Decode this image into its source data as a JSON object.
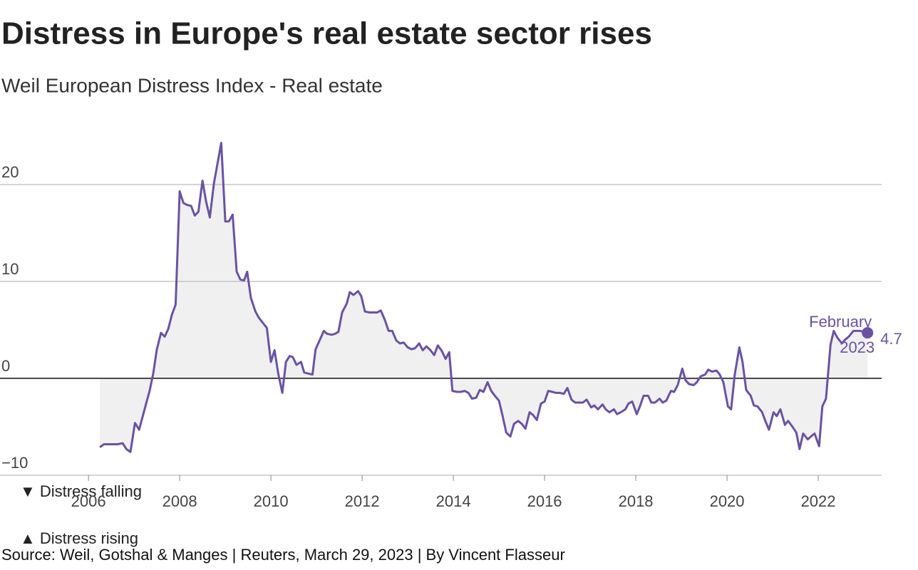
{
  "chart_data": {
    "type": "line",
    "title": "Distress in Europe's real estate sector rises",
    "subtitle": "Weil European Distress Index - Real estate",
    "source": "Source: Weil, Gotshal & Manges | Reuters, March 29, 2023 | By Vincent Flasseur",
    "legend_notes": [
      "▼ Distress falling",
      "▲ Distress rising"
    ],
    "annotation": {
      "label_lines": [
        "February",
        "2023"
      ]
    },
    "color": "#6a52a3",
    "area_color": "#f0f0f0",
    "grid": true,
    "xlim": [
      2004.06,
      2023.39
    ],
    "xticks": [
      2006,
      2008,
      2010,
      2012,
      2014,
      2016,
      2018,
      2020,
      2022
    ],
    "ylim": [
      -10,
      25
    ],
    "yticks": [
      {
        "value": -10,
        "label": "−10"
      },
      0,
      10,
      20
    ],
    "series": [
      {
        "name": "Real estate",
        "x": [
          2006.25,
          2006.34,
          2006.64,
          2006.75,
          2006.83,
          2006.92,
          2007.02,
          2007.11,
          2007.27,
          2007.34,
          2007.42,
          2007.5,
          2007.59,
          2007.67,
          2007.75,
          2007.83,
          2007.91,
          2008.0,
          2008.08,
          2008.16,
          2008.25,
          2008.33,
          2008.41,
          2008.5,
          2008.58,
          2008.66,
          2008.75,
          2008.91,
          2009.0,
          2009.08,
          2009.16,
          2009.25,
          2009.33,
          2009.41,
          2009.48,
          2009.56,
          2009.66,
          2009.73,
          2009.81,
          2009.91,
          2010.0,
          2010.08,
          2010.16,
          2010.25,
          2010.33,
          2010.41,
          2010.48,
          2010.56,
          2010.66,
          2010.73,
          2010.81,
          2010.91,
          2010.98,
          2011.16,
          2011.23,
          2011.33,
          2011.41,
          2011.48,
          2011.56,
          2011.66,
          2011.73,
          2011.81,
          2011.91,
          2011.98,
          2012.06,
          2012.16,
          2012.23,
          2012.33,
          2012.41,
          2012.5,
          2012.58,
          2012.66,
          2012.75,
          2012.83,
          2012.91,
          2013.0,
          2013.08,
          2013.16,
          2013.25,
          2013.33,
          2013.41,
          2013.5,
          2013.58,
          2013.66,
          2013.75,
          2013.83,
          2013.91,
          2013.98,
          2014.08,
          2014.16,
          2014.25,
          2014.33,
          2014.41,
          2014.5,
          2014.58,
          2014.66,
          2014.75,
          2014.83,
          2014.91,
          2015.0,
          2015.08,
          2015.16,
          2015.25,
          2015.33,
          2015.42,
          2015.5,
          2015.58,
          2015.67,
          2015.75,
          2015.83,
          2015.92,
          2016.0,
          2016.08,
          2016.17,
          2016.25,
          2016.34,
          2016.42,
          2016.5,
          2016.59,
          2016.67,
          2016.75,
          2016.84,
          2016.92,
          2017.02,
          2017.09,
          2017.17,
          2017.27,
          2017.34,
          2017.42,
          2017.52,
          2017.59,
          2017.67,
          2017.77,
          2017.84,
          2017.92,
          2018.02,
          2018.09,
          2018.17,
          2018.27,
          2018.34,
          2018.42,
          2018.52,
          2018.59,
          2018.67,
          2018.77,
          2018.84,
          2018.92,
          2019.02,
          2019.09,
          2019.17,
          2019.27,
          2019.34,
          2019.42,
          2019.52,
          2019.59,
          2019.67,
          2019.77,
          2019.84,
          2019.92,
          2020.02,
          2020.09,
          2020.17,
          2020.27,
          2020.34,
          2020.42,
          2020.52,
          2020.59,
          2020.67,
          2020.77,
          2020.84,
          2020.92,
          2021.02,
          2021.09,
          2021.17,
          2021.27,
          2021.34,
          2021.42,
          2021.52,
          2021.59,
          2021.67,
          2021.77,
          2021.84,
          2021.92,
          2022.02,
          2022.09,
          2022.17,
          2022.27,
          2022.34,
          2022.42,
          2022.52,
          2022.59,
          2022.67,
          2022.77,
          2022.84,
          2022.92,
          2023.0,
          2023.08
        ],
        "values": [
          -7.1,
          -6.8,
          -6.8,
          -6.7,
          -7.3,
          -7.6,
          -4.6,
          -5.3,
          -2.5,
          -1.3,
          0.5,
          3.0,
          4.7,
          4.3,
          5.1,
          6.6,
          7.6,
          19.3,
          18.1,
          17.9,
          17.8,
          16.8,
          17.2,
          20.4,
          18.2,
          16.6,
          20.1,
          24.3,
          16.2,
          16.2,
          16.9,
          11.0,
          10.2,
          10.1,
          11.0,
          8.3,
          6.9,
          6.3,
          5.8,
          5.2,
          1.7,
          2.9,
          0.5,
          -1.5,
          1.7,
          2.3,
          2.2,
          1.4,
          1.7,
          0.6,
          0.5,
          0.4,
          3.0,
          4.9,
          4.6,
          4.5,
          4.6,
          4.8,
          6.8,
          7.7,
          8.9,
          8.6,
          9.0,
          8.5,
          6.9,
          6.8,
          6.8,
          6.8,
          7.0,
          6.0,
          4.9,
          4.9,
          3.9,
          3.6,
          3.7,
          3.2,
          3.0,
          3.1,
          3.6,
          2.9,
          3.3,
          2.9,
          2.4,
          3.4,
          2.8,
          2.0,
          2.7,
          -1.3,
          -1.4,
          -1.4,
          -1.3,
          -1.5,
          -2.1,
          -2.0,
          -1.2,
          -1.4,
          -0.4,
          -1.3,
          -1.8,
          -2.3,
          -3.9,
          -5.6,
          -6.0,
          -4.7,
          -4.4,
          -4.7,
          -5.2,
          -3.5,
          -3.8,
          -4.3,
          -2.6,
          -2.4,
          -1.3,
          -1.4,
          -1.5,
          -1.5,
          -1.6,
          -1.0,
          -2.2,
          -2.5,
          -2.5,
          -2.5,
          -2.2,
          -3.0,
          -2.8,
          -3.2,
          -2.7,
          -3.2,
          -3.5,
          -3.2,
          -3.7,
          -3.5,
          -3.2,
          -2.6,
          -2.4,
          -3.7,
          -2.9,
          -1.8,
          -1.8,
          -2.5,
          -2.5,
          -2.1,
          -2.5,
          -2.3,
          -1.3,
          -1.4,
          -0.7,
          1.0,
          -0.2,
          -0.6,
          -0.7,
          -0.4,
          0.2,
          0.4,
          0.9,
          0.7,
          0.8,
          0.4,
          -0.4,
          -2.9,
          -3.2,
          0.4,
          3.2,
          1.7,
          -1.2,
          -1.8,
          -2.8,
          -2.9,
          -3.5,
          -4.4,
          -5.3,
          -3.5,
          -3.9,
          -3.2,
          -4.8,
          -4.4,
          -4.9,
          -5.6,
          -7.3,
          -5.7,
          -6.3,
          -6.0,
          -5.7,
          -7.0,
          -2.9,
          -2.1,
          3.5,
          4.9,
          4.2,
          3.6,
          4.0,
          4.3,
          4.9,
          4.9,
          4.9,
          4.8,
          4.7
        ]
      }
    ]
  }
}
